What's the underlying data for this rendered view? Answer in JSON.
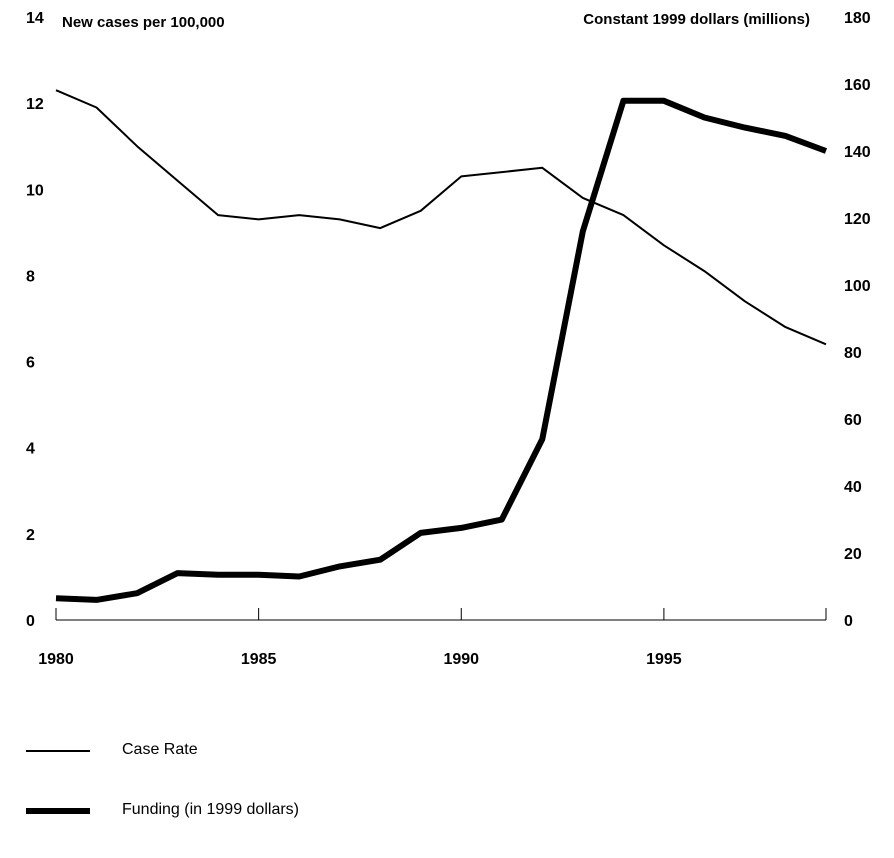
{
  "chart_data": {
    "type": "line",
    "left_axis_title": "New cases per 100,000",
    "right_axis_title": "Constant 1999 dollars (millions)",
    "x_ticks": [
      "1980",
      "1985",
      "1990",
      "1995"
    ],
    "left_ticks": [
      "0",
      "2",
      "4",
      "6",
      "8",
      "10",
      "12",
      "14"
    ],
    "right_ticks": [
      "0",
      "20",
      "40",
      "60",
      "80",
      "100",
      "120",
      "140",
      "160",
      "180"
    ],
    "xlim": [
      1980,
      1999
    ],
    "ylim_left": [
      0,
      14
    ],
    "ylim_right": [
      0,
      180
    ],
    "grid": false,
    "legend_position": "bottom-left",
    "x": [
      1980,
      1981,
      1982,
      1983,
      1984,
      1985,
      1986,
      1987,
      1988,
      1989,
      1990,
      1991,
      1992,
      1993,
      1994,
      1995,
      1996,
      1997,
      1998,
      1999
    ],
    "series": [
      {
        "name": "Case Rate",
        "axis": "left",
        "values": [
          12.3,
          11.9,
          11.0,
          10.2,
          9.4,
          9.3,
          9.4,
          9.3,
          9.1,
          9.5,
          10.3,
          10.4,
          10.5,
          9.8,
          9.4,
          8.7,
          8.1,
          7.4,
          6.8,
          6.4
        ]
      },
      {
        "name": "Funding (in 1999 dollars)",
        "axis": "right",
        "values": [
          6.5,
          6,
          8,
          14,
          13.5,
          13.5,
          13,
          16,
          18,
          26,
          27.5,
          30,
          54,
          116,
          155,
          155,
          150,
          147,
          144.5,
          140
        ]
      }
    ]
  }
}
